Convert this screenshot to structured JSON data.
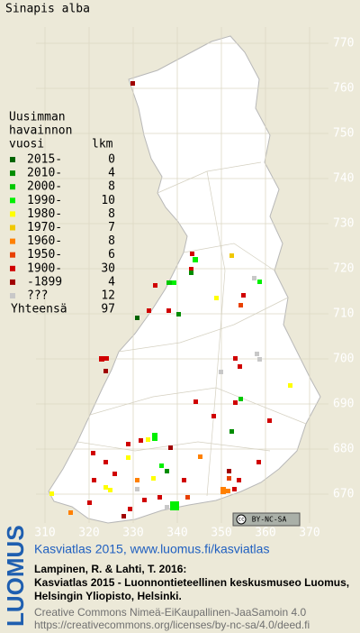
{
  "title": "Sinapis alba",
  "legend": {
    "heading": [
      "Uusimman",
      "havainnon",
      "vuosi"
    ],
    "count_heading": "lkm",
    "items": [
      {
        "label": "2015-",
        "count": 0,
        "color": "#006400"
      },
      {
        "label": "2010-",
        "count": 4,
        "color": "#008c00"
      },
      {
        "label": "2000-",
        "count": 8,
        "color": "#00c800"
      },
      {
        "label": "1990-",
        "count": 10,
        "color": "#00f000"
      },
      {
        "label": "1980-",
        "count": 8,
        "color": "#ffff00"
      },
      {
        "label": "1970-",
        "count": 7,
        "color": "#f0c800"
      },
      {
        "label": "1960-",
        "count": 8,
        "color": "#ff8000"
      },
      {
        "label": "1950-",
        "count": 6,
        "color": "#e84000"
      },
      {
        "label": "1900-",
        "count": 30,
        "color": "#d00000"
      },
      {
        "label": "-1899",
        "count": 4,
        "color": "#a00000"
      },
      {
        "label": "???",
        "count": 12,
        "color": "#c8c8c8"
      }
    ],
    "total_label": "Yhteensä",
    "total": 97
  },
  "grid": {
    "north": [
      770,
      760,
      750,
      740,
      730,
      720,
      710,
      700,
      690,
      680,
      670
    ],
    "east": [
      310,
      320,
      330,
      340,
      350,
      360,
      370
    ]
  },
  "license_badge": "BY-NC-SA",
  "footer": {
    "logo": "LUOMUS",
    "atlas": "Kasviatlas 2015, www.luomus.fi/kasviatlas",
    "citation": [
      "Lampinen, R. & Lahti, T. 2016:",
      "Kasviatlas 2015 - Luonnontieteellinen keskusmuseo Luomus,",
      "Helsingin Yliopisto, Helsinki."
    ],
    "license": [
      "Creative Commons Nimeä-EiKaupallinen-JaaSamoin 4.0",
      "https://creativecommons.org/licenses/by-nc-sa/4.0/deed.fi"
    ]
  }
}
